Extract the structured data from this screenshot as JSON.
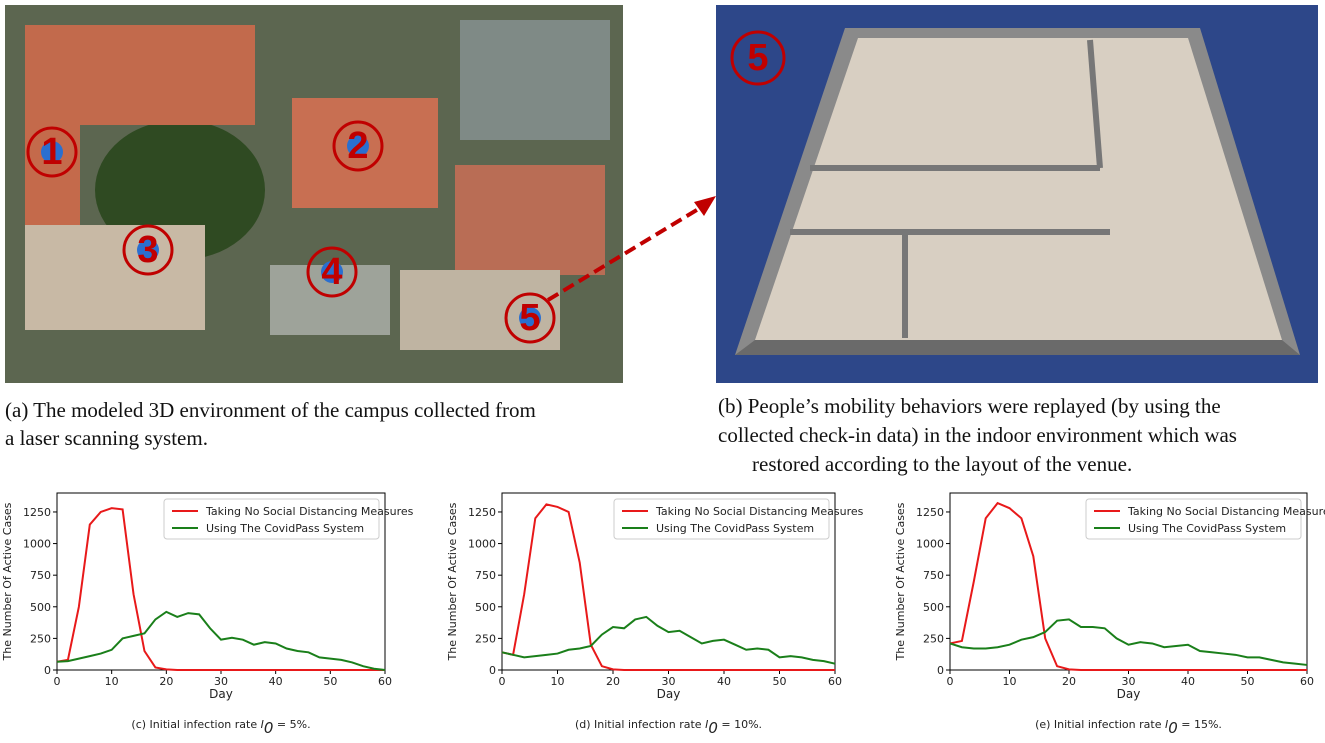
{
  "image_a": {
    "markers": [
      "1",
      "2",
      "3",
      "4",
      "5"
    ],
    "caption": [
      "(a) The modeled 3D environment of the campus collected from",
      "a laser scanning system."
    ]
  },
  "image_b": {
    "marker": "5",
    "caption": [
      "(b) People’s mobility behaviors were replayed (by using the",
      "collected check-in data) in the indoor environment which was",
      "restored according to the layout of the venue."
    ]
  },
  "chart_data": [
    {
      "type": "line",
      "xlabel": "Day",
      "ylabel": "The Number Of Active Cases",
      "caption": {
        "prefix": "(c) Initial infection rate ",
        "symbol": "I",
        "subscript": "0",
        "suffix": " = 5%."
      },
      "x": [
        0,
        2,
        4,
        6,
        8,
        10,
        12,
        14,
        16,
        18,
        20,
        22,
        24,
        26,
        28,
        30,
        32,
        34,
        36,
        38,
        40,
        42,
        44,
        46,
        48,
        50,
        52,
        54,
        56,
        58,
        60
      ],
      "xlim": [
        0,
        60
      ],
      "xticks": [
        0,
        10,
        20,
        30,
        40,
        50,
        60
      ],
      "ylim": [
        0,
        1400
      ],
      "yticks": [
        0,
        250,
        500,
        750,
        1000,
        1250
      ],
      "legend": "upper right",
      "series": [
        {
          "name": "Taking No Social Distancing Measures",
          "color": "#e8191a",
          "values": [
            65,
            80,
            500,
            1150,
            1250,
            1280,
            1270,
            600,
            150,
            20,
            5,
            0,
            0,
            0,
            0,
            0,
            0,
            0,
            0,
            0,
            0,
            0,
            0,
            0,
            0,
            0,
            0,
            0,
            0,
            0,
            0
          ]
        },
        {
          "name": "Using The CovidPass System",
          "color": "#1a7f1a",
          "values": [
            65,
            70,
            90,
            110,
            130,
            160,
            250,
            270,
            290,
            400,
            460,
            420,
            450,
            440,
            330,
            240,
            255,
            240,
            200,
            220,
            210,
            170,
            150,
            140,
            100,
            90,
            80,
            60,
            30,
            10,
            0
          ]
        }
      ]
    },
    {
      "type": "line",
      "xlabel": "Day",
      "ylabel": "The Number Of Active Cases",
      "caption": {
        "prefix": "(d) Initial infection rate ",
        "symbol": "I",
        "subscript": "0",
        "suffix": " = 10%."
      },
      "x": [
        0,
        2,
        4,
        6,
        8,
        10,
        12,
        14,
        16,
        18,
        20,
        22,
        24,
        26,
        28,
        30,
        32,
        34,
        36,
        38,
        40,
        42,
        44,
        46,
        48,
        50,
        52,
        54,
        56,
        58,
        60
      ],
      "xlim": [
        0,
        60
      ],
      "xticks": [
        0,
        10,
        20,
        30,
        40,
        50,
        60
      ],
      "ylim": [
        0,
        1400
      ],
      "yticks": [
        0,
        250,
        500,
        750,
        1000,
        1250
      ],
      "legend": "upper right",
      "series": [
        {
          "name": "Taking No Social Distancing Measures",
          "color": "#e8191a",
          "values": [
            140,
            120,
            600,
            1200,
            1310,
            1290,
            1250,
            850,
            200,
            30,
            5,
            0,
            0,
            0,
            0,
            0,
            0,
            0,
            0,
            0,
            0,
            0,
            0,
            0,
            0,
            0,
            0,
            0,
            0,
            0,
            0
          ]
        },
        {
          "name": "Using The CovidPass System",
          "color": "#1a7f1a",
          "values": [
            140,
            120,
            100,
            110,
            120,
            130,
            160,
            170,
            190,
            280,
            340,
            330,
            400,
            420,
            350,
            300,
            310,
            260,
            210,
            230,
            240,
            200,
            160,
            170,
            160,
            100,
            110,
            100,
            80,
            70,
            50
          ]
        }
      ]
    },
    {
      "type": "line",
      "xlabel": "Day",
      "ylabel": "The Number Of Active Cases",
      "caption": {
        "prefix": "(e) Initial infection rate ",
        "symbol": "I",
        "subscript": "0",
        "suffix": " = 15%."
      },
      "x": [
        0,
        2,
        4,
        6,
        8,
        10,
        12,
        14,
        16,
        18,
        20,
        22,
        24,
        26,
        28,
        30,
        32,
        34,
        36,
        38,
        40,
        42,
        44,
        46,
        48,
        50,
        52,
        54,
        56,
        58,
        60
      ],
      "xlim": [
        0,
        60
      ],
      "xticks": [
        0,
        10,
        20,
        30,
        40,
        50,
        60
      ],
      "ylim": [
        0,
        1400
      ],
      "yticks": [
        0,
        250,
        500,
        750,
        1000,
        1250
      ],
      "legend": "upper right",
      "series": [
        {
          "name": "Taking No Social Distancing Measures",
          "color": "#e8191a",
          "values": [
            210,
            230,
            700,
            1200,
            1320,
            1280,
            1200,
            900,
            250,
            30,
            5,
            0,
            0,
            0,
            0,
            0,
            0,
            0,
            0,
            0,
            0,
            0,
            0,
            0,
            0,
            0,
            0,
            0,
            0,
            0,
            0
          ]
        },
        {
          "name": "Using The CovidPass System",
          "color": "#1a7f1a",
          "values": [
            210,
            180,
            170,
            170,
            180,
            200,
            240,
            260,
            300,
            390,
            400,
            340,
            340,
            330,
            250,
            200,
            220,
            210,
            180,
            190,
            200,
            150,
            140,
            130,
            120,
            100,
            100,
            80,
            60,
            50,
            40
          ]
        }
      ]
    }
  ]
}
